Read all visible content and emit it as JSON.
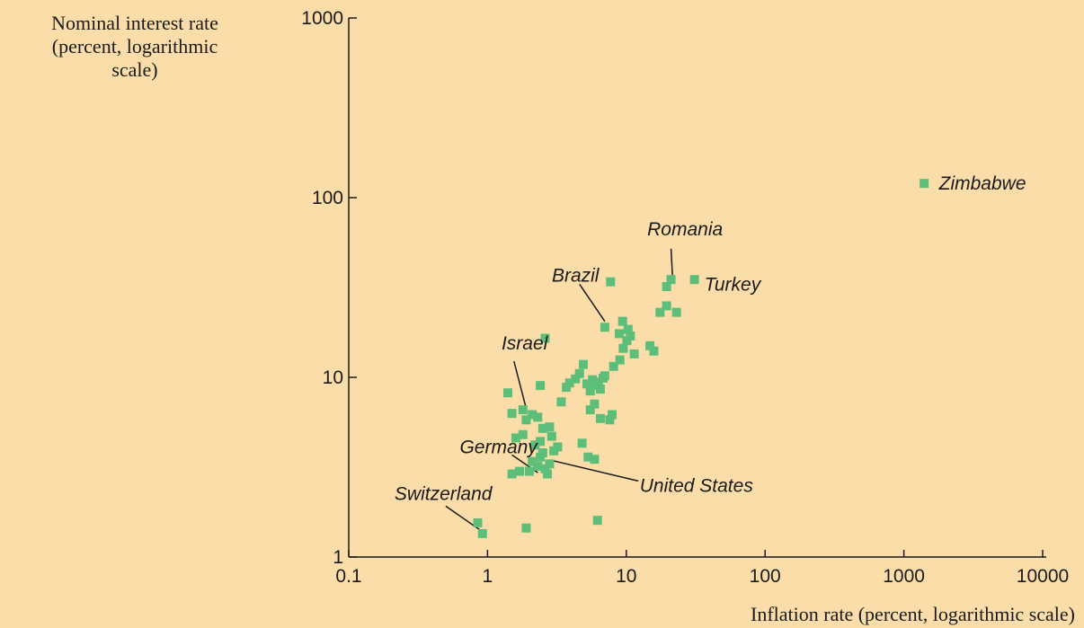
{
  "chart_data": {
    "type": "scatter",
    "xlabel": "Inflation rate (percent, logarithmic scale)",
    "ylabel_lines": [
      "Nominal interest rate",
      "(percent, logarithmic",
      "scale)"
    ],
    "x_scale": "log",
    "y_scale": "log",
    "xlim": [
      0.1,
      10000
    ],
    "ylim": [
      1,
      1000
    ],
    "x_ticks": [
      {
        "value": 0.1,
        "label": "0.1"
      },
      {
        "value": 1,
        "label": "1"
      },
      {
        "value": 10,
        "label": "10"
      },
      {
        "value": 100,
        "label": "100"
      },
      {
        "value": 1000,
        "label": "1000"
      },
      {
        "value": 10000,
        "label": "10000"
      }
    ],
    "y_ticks": [
      {
        "value": 1,
        "label": "1"
      },
      {
        "value": 10,
        "label": "10"
      },
      {
        "value": 100,
        "label": "100"
      },
      {
        "value": 1000,
        "label": "1000"
      }
    ],
    "point_color": "#5DBE7A",
    "points": [
      {
        "x": 0.85,
        "y": 1.55
      },
      {
        "x": 0.92,
        "y": 1.35
      },
      {
        "x": 1.9,
        "y": 1.45
      },
      {
        "x": 6.2,
        "y": 1.6
      },
      {
        "x": 1.5,
        "y": 2.9
      },
      {
        "x": 1.7,
        "y": 3.0
      },
      {
        "x": 2.0,
        "y": 3.0
      },
      {
        "x": 2.1,
        "y": 3.4
      },
      {
        "x": 2.3,
        "y": 3.2
      },
      {
        "x": 2.4,
        "y": 3.6
      },
      {
        "x": 2.5,
        "y": 3.8
      },
      {
        "x": 2.6,
        "y": 3.1
      },
      {
        "x": 2.8,
        "y": 3.3
      },
      {
        "x": 3.0,
        "y": 3.9
      },
      {
        "x": 2.7,
        "y": 2.9
      },
      {
        "x": 2.2,
        "y": 4.2
      },
      {
        "x": 1.6,
        "y": 4.6
      },
      {
        "x": 1.8,
        "y": 4.8
      },
      {
        "x": 2.4,
        "y": 4.4
      },
      {
        "x": 2.9,
        "y": 4.7
      },
      {
        "x": 3.2,
        "y": 4.1
      },
      {
        "x": 2.5,
        "y": 5.2
      },
      {
        "x": 2.8,
        "y": 5.3
      },
      {
        "x": 1.5,
        "y": 6.3
      },
      {
        "x": 1.8,
        "y": 6.6
      },
      {
        "x": 2.1,
        "y": 6.2
      },
      {
        "x": 2.3,
        "y": 6.0
      },
      {
        "x": 1.9,
        "y": 5.8
      },
      {
        "x": 1.4,
        "y": 8.2
      },
      {
        "x": 2.4,
        "y": 9.0
      },
      {
        "x": 3.7,
        "y": 8.8
      },
      {
        "x": 3.9,
        "y": 9.3
      },
      {
        "x": 4.3,
        "y": 9.8
      },
      {
        "x": 4.6,
        "y": 10.5
      },
      {
        "x": 4.9,
        "y": 11.8
      },
      {
        "x": 5.2,
        "y": 9.2
      },
      {
        "x": 5.5,
        "y": 8.4
      },
      {
        "x": 5.7,
        "y": 9.7
      },
      {
        "x": 6.0,
        "y": 9.0
      },
      {
        "x": 6.3,
        "y": 9.4
      },
      {
        "x": 6.5,
        "y": 8.6
      },
      {
        "x": 6.8,
        "y": 9.9
      },
      {
        "x": 7.0,
        "y": 10.2
      },
      {
        "x": 5.9,
        "y": 7.1
      },
      {
        "x": 5.5,
        "y": 6.6
      },
      {
        "x": 6.5,
        "y": 5.9
      },
      {
        "x": 7.6,
        "y": 5.8
      },
      {
        "x": 7.9,
        "y": 6.2
      },
      {
        "x": 4.8,
        "y": 4.3
      },
      {
        "x": 5.3,
        "y": 3.6
      },
      {
        "x": 5.9,
        "y": 3.5
      },
      {
        "x": 3.4,
        "y": 7.3
      },
      {
        "x": 7.0,
        "y": 19.0
      },
      {
        "x": 8.1,
        "y": 11.5
      },
      {
        "x": 9.0,
        "y": 12.5
      },
      {
        "x": 9.5,
        "y": 14.5
      },
      {
        "x": 10.1,
        "y": 16.0
      },
      {
        "x": 10.7,
        "y": 17.0
      },
      {
        "x": 11.4,
        "y": 13.5
      },
      {
        "x": 9.4,
        "y": 20.5
      },
      {
        "x": 10.3,
        "y": 18.5
      },
      {
        "x": 8.9,
        "y": 17.5
      },
      {
        "x": 2.6,
        "y": 16.5
      },
      {
        "x": 7.7,
        "y": 34.0
      },
      {
        "x": 14.8,
        "y": 15.0
      },
      {
        "x": 15.8,
        "y": 14.0
      },
      {
        "x": 17.5,
        "y": 23.0
      },
      {
        "x": 19.5,
        "y": 25.0
      },
      {
        "x": 23.0,
        "y": 23.0
      },
      {
        "x": 19.5,
        "y": 32.0
      },
      {
        "x": 21.0,
        "y": 35.0
      },
      {
        "x": 31.0,
        "y": 35.0
      },
      {
        "x": 1400,
        "y": 120
      }
    ],
    "annotations": [
      {
        "label": "Zimbabwe",
        "tx": 1790,
        "ty": 120,
        "anchor": "start",
        "leader": null
      },
      {
        "label": "Romania",
        "tx": 26.5,
        "ty": 67,
        "anchor": "middle",
        "leader": {
          "x1": 21.0,
          "y1": 52,
          "x2": 21.5,
          "y2": 37
        }
      },
      {
        "label": "Turkey",
        "tx": 36.5,
        "ty": 33,
        "anchor": "start",
        "leader": null
      },
      {
        "label": "Brazil",
        "tx": 4.3,
        "ty": 37,
        "anchor": "middle",
        "leader": {
          "x1": 4.6,
          "y1": 33,
          "x2": 7.0,
          "y2": 20.5
        }
      },
      {
        "label": "Israel",
        "tx": 1.85,
        "ty": 15.5,
        "anchor": "middle",
        "leader": {
          "x1": 1.55,
          "y1": 12.3,
          "x2": 1.9,
          "y2": 6.7
        }
      },
      {
        "label": "Germany",
        "tx": 1.2,
        "ty": 4.1,
        "anchor": "middle",
        "leader": {
          "x1": 1.5,
          "y1": 3.7,
          "x2": 2.3,
          "y2": 2.95
        }
      },
      {
        "label": "United States",
        "tx": 12.5,
        "ty": 2.5,
        "anchor": "start",
        "leader": {
          "x1": 12.2,
          "y1": 2.65,
          "x2": 2.9,
          "y2": 3.45
        }
      },
      {
        "label": "Switzerland",
        "tx": 0.48,
        "ty": 2.25,
        "anchor": "middle",
        "leader": {
          "x1": 0.5,
          "y1": 1.92,
          "x2": 0.9,
          "y2": 1.4
        }
      }
    ]
  }
}
